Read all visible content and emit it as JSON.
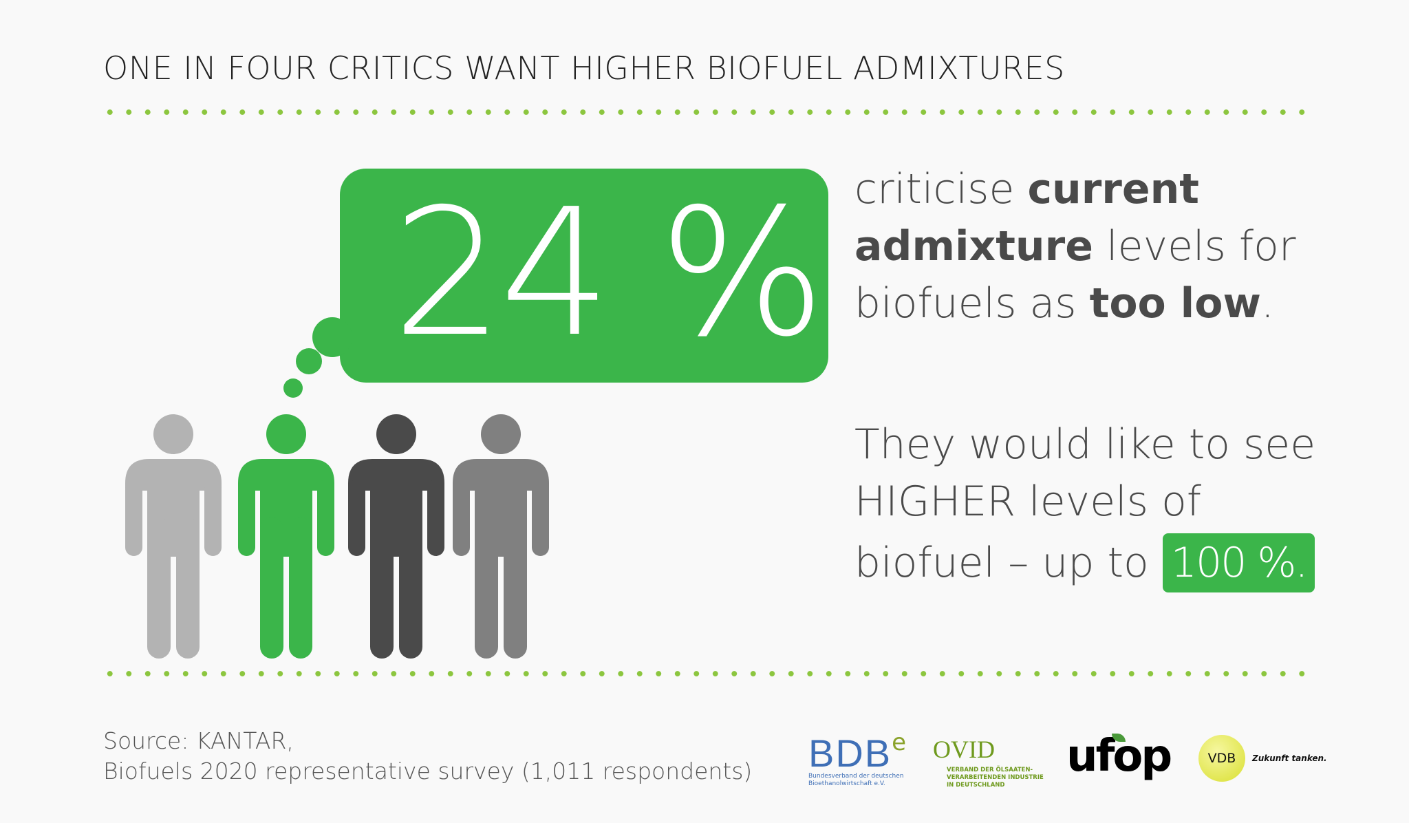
{
  "title": "ONE IN FOUR CRITICS WANT HIGHER BIOFUEL ADMIXTURES",
  "headline_value": "24 %",
  "statement1": {
    "t1": "criticise ",
    "b1": "current",
    "b2": "admixture",
    "t2": " levels for",
    "t3": "biofuels as ",
    "b3": "too low",
    "t4": "."
  },
  "statement2": {
    "line1": "They would like to see",
    "line2": "HIGHER levels of",
    "line3": "biofuel – up to",
    "badge": "100 %."
  },
  "source": {
    "line1": "Source: KANTAR,",
    "line2": "Biofuels 2020 representative survey (1,011 respondents)"
  },
  "people": [
    {
      "color": "#b3b3b3"
    },
    {
      "color": "#3bb54a",
      "highlighted": true
    },
    {
      "color": "#4a4a4a"
    },
    {
      "color": "#808080"
    }
  ],
  "logos": {
    "bdbe": {
      "name": "BDB",
      "sup": "e",
      "sub1": "Bundesverband der deutschen",
      "sub2": "Bioethanolwirtschaft e.V."
    },
    "ovid": {
      "name": "OVID",
      "sub1": "VERBAND DER ÖLSAATEN-",
      "sub2": "VERARBEITENDEN INDUSTRIE",
      "sub3": "IN DEUTSCHLAND"
    },
    "ufop": {
      "name": "ufop"
    },
    "vdb": {
      "name": "VDB",
      "tagline": "Zukunft tanken."
    }
  },
  "colors": {
    "accent": "#3bb54a",
    "dots": "#8cc63f",
    "text": "#4a4a4a",
    "background": "#f9f9f9"
  }
}
